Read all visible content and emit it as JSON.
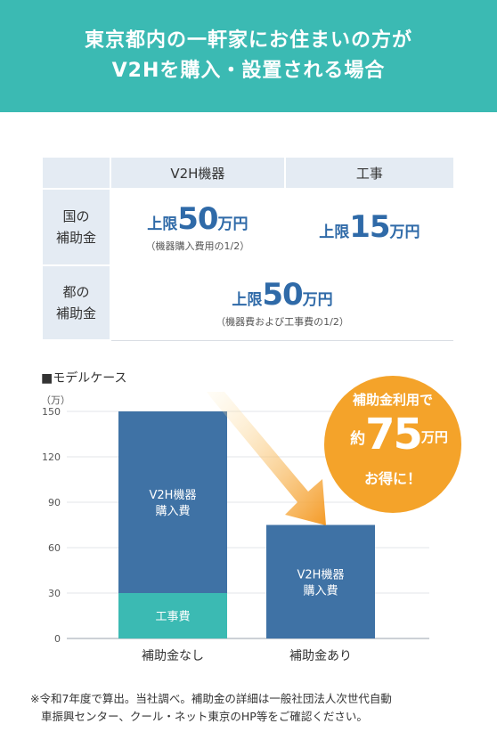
{
  "header": {
    "line1": "東京都内の一軒家にお住まいの方が",
    "line2": "V2Hを購入・設置される場合"
  },
  "table": {
    "col_device": "V2H機器",
    "col_work": "工事",
    "row_national_l1": "国の",
    "row_national_l2": "補助金",
    "row_tokyo_l1": "都の",
    "row_tokyo_l2": "補助金",
    "national_device": {
      "pre": "上限",
      "num": "50",
      "unit": "万円",
      "note": "（機器購入費用の1/2）"
    },
    "national_work": {
      "pre": "上限",
      "num": "15",
      "unit": "万円"
    },
    "tokyo": {
      "pre": "上限",
      "num": "50",
      "unit": "万円",
      "note": "（機器費および工事費の1/2）"
    }
  },
  "model_case_title": "■モデルケース",
  "unit_label": "（万）",
  "badge": {
    "line1": "補助金利用で",
    "pre": "約",
    "num": "75",
    "unit": "万円",
    "line3": "お得に！"
  },
  "chart_data": {
    "type": "bar",
    "categories": [
      "補助金なし",
      "補助金あり"
    ],
    "series": [
      {
        "name": "工事費",
        "values": [
          30,
          0
        ]
      },
      {
        "name": "V2H機器購入費",
        "values": [
          120,
          75
        ]
      }
    ],
    "segment_labels": [
      [
        "工事費",
        "V2H機器\n購入費"
      ],
      [
        "",
        "V2H機器\n購入費"
      ]
    ],
    "ylim": [
      0,
      150
    ],
    "yticks": [
      0,
      30,
      60,
      90,
      120,
      150
    ],
    "ylabel": "（万）",
    "grid": true,
    "colors": {
      "work": "#3bbab3",
      "device": "#3f72a5",
      "arrow_start": "#fde9b4",
      "arrow_end": "#f49a26"
    }
  },
  "footnote": {
    "line1": "※令和7年度で算出。当社調べ。補助金の詳細は一般社団法人次世代自動",
    "line2": "車振興センター、クール・ネット東京のHP等をご確認ください。"
  }
}
